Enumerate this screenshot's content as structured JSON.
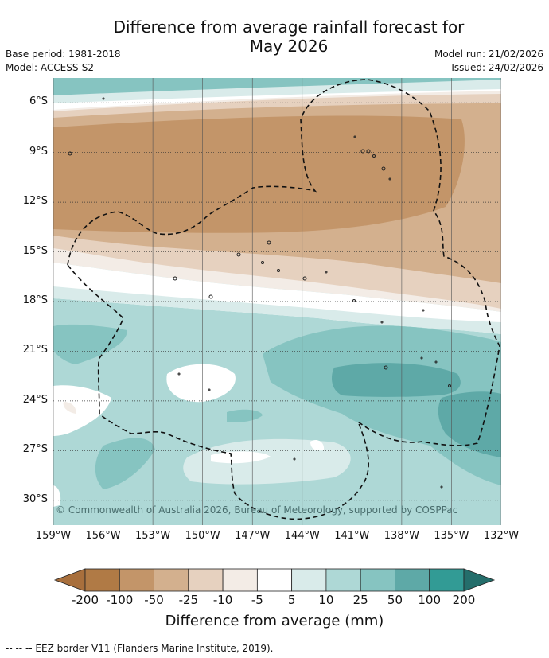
{
  "title": {
    "line1": "Difference from average rainfall forecast for",
    "line2": "May 2026"
  },
  "meta_left": {
    "base_period": "Base period: 1981-2018",
    "model": "Model: ACCESS-S2"
  },
  "meta_right": {
    "model_run": "Model run: 21/02/2026",
    "issued": "Issued: 24/02/2026"
  },
  "map": {
    "lat_labels": [
      "6°S",
      "9°S",
      "12°S",
      "15°S",
      "18°S",
      "21°S",
      "24°S",
      "27°S",
      "30°S"
    ],
    "lon_labels": [
      "159°W",
      "156°W",
      "153°W",
      "150°W",
      "147°W",
      "144°W",
      "141°W",
      "138°W",
      "135°W",
      "132°W"
    ],
    "lat_range": [
      -31.5,
      -4.5
    ],
    "lon_range": [
      -159,
      -132
    ],
    "copyright": "© Commonwealth of Australia 2026, Bureau of Meteorology, supported by COSPPac"
  },
  "colorbar": {
    "ticks": [
      "-200",
      "-100",
      "-50",
      "-25",
      "-10",
      "-5",
      "5",
      "10",
      "25",
      "50",
      "100",
      "200"
    ],
    "colors": [
      "#a86f3c",
      "#b07a45",
      "#c39569",
      "#d3b08e",
      "#e6d1bf",
      "#f3ece6",
      "#ffffff",
      "#d9ebea",
      "#aed8d6",
      "#86c4c1",
      "#5ea9a7",
      "#329b95",
      "#246e6b"
    ],
    "label": "Difference from average (mm)"
  },
  "footer": "--  --  -- EEZ border V11 (Flanders Marine Institute, 2019)."
}
